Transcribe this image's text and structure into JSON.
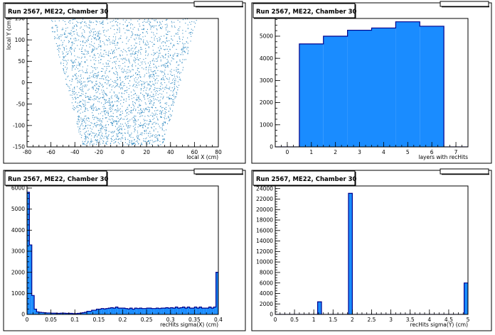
{
  "colors": {
    "fill": "#1a8cff",
    "edge": "#00008b",
    "scatter": "#3a8fc4",
    "frame": "#000000",
    "background": "#ffffff"
  },
  "chart_data": [
    {
      "type": "scatter",
      "title": "Run 2567, ME22, Chamber 30",
      "xlabel": "local X (cm)",
      "ylabel": "local Y (cm)",
      "xlim": [
        -80,
        80
      ],
      "ylim": [
        -150,
        150
      ],
      "xticks": [
        -80,
        -60,
        -40,
        -20,
        0,
        20,
        40,
        60,
        80
      ],
      "yticks": [
        -150,
        -100,
        -50,
        0,
        50,
        100,
        150
      ],
      "region": {
        "y_bottom": -145,
        "y_top": 150,
        "half_width_bottom": 34,
        "half_width_top": 62
      },
      "grid": false
    },
    {
      "type": "bar",
      "title": "Run 2567, ME22, Chamber 30",
      "xlabel": "layers with recHits",
      "xlim": [
        -0.5,
        7.5
      ],
      "ylim": [
        0,
        5800
      ],
      "xticks": [
        0,
        1,
        2,
        3,
        4,
        5,
        6,
        7
      ],
      "yticks": [
        0,
        1000,
        2000,
        3000,
        4000,
        5000
      ],
      "categories": [
        0,
        1,
        2,
        3,
        4,
        5,
        6,
        7
      ],
      "values": [
        0,
        4650,
        5000,
        5270,
        5370,
        5650,
        5450,
        0
      ],
      "grid": false
    },
    {
      "type": "bar",
      "title": "Run 2567, ME22, Chamber 30",
      "xlabel": "recHits sigma(X) (cm)",
      "xlim": [
        0,
        0.4
      ],
      "ylim": [
        0,
        6100
      ],
      "xticks": [
        0,
        0.05,
        0.1,
        0.15,
        0.2,
        0.25,
        0.3,
        0.35,
        0.4
      ],
      "yticks": [
        0,
        1000,
        2000,
        3000,
        4000,
        5000,
        6000
      ],
      "bin_width": 0.005,
      "values": [
        5800,
        3300,
        900,
        250,
        120,
        100,
        90,
        80,
        70,
        70,
        60,
        60,
        50,
        50,
        60,
        60,
        50,
        50,
        50,
        40,
        40,
        50,
        60,
        80,
        100,
        150,
        150,
        200,
        200,
        250,
        250,
        280,
        260,
        280,
        300,
        320,
        300,
        350,
        300,
        300,
        300,
        280,
        260,
        300,
        250,
        300,
        280,
        300,
        280,
        280,
        300,
        300,
        280,
        280,
        300,
        280,
        300,
        300,
        320,
        300,
        320,
        300,
        350,
        300,
        320,
        350,
        300,
        350,
        300,
        300,
        350,
        300,
        350,
        300,
        300,
        300,
        350,
        300,
        350,
        2000
      ],
      "grid": false
    },
    {
      "type": "bar",
      "title": "Run 2567, ME22, Chamber 30",
      "xlabel": "recHits sigma(Y) (cm)",
      "xlim": [
        0,
        5
      ],
      "ylim": [
        0,
        24500
      ],
      "xticks": [
        0,
        0.5,
        1,
        1.5,
        2,
        2.5,
        3,
        3.5,
        4,
        4.5,
        5
      ],
      "yticks": [
        0,
        2000,
        4000,
        6000,
        8000,
        10000,
        12000,
        14000,
        16000,
        18000,
        20000,
        22000,
        24000
      ],
      "bin_width": 0.1,
      "values": [
        0,
        0,
        0,
        0,
        0,
        0,
        0,
        0,
        0,
        0,
        0,
        2400,
        0,
        0,
        0,
        0,
        0,
        0,
        0,
        23100,
        0,
        0,
        0,
        0,
        0,
        0,
        0,
        0,
        0,
        0,
        0,
        0,
        0,
        0,
        0,
        0,
        0,
        0,
        0,
        0,
        0,
        0,
        0,
        0,
        0,
        0,
        0,
        0,
        0,
        6000
      ],
      "grid": false
    }
  ]
}
